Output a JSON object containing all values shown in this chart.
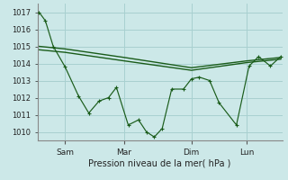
{
  "background_color": "#cce8e8",
  "grid_color": "#a8d0d0",
  "line_color": "#1a5c1a",
  "title": "Pression niveau de la mer( hPa )",
  "ylim": [
    1009.5,
    1017.5
  ],
  "yticks": [
    1010,
    1011,
    1012,
    1013,
    1014,
    1015,
    1016,
    1017
  ],
  "xtick_labels": [
    "Sam",
    "Mar",
    "Dim",
    "Lun"
  ],
  "xtick_positions": [
    35,
    110,
    195,
    265
  ],
  "xlim_data": [
    0,
    310
  ],
  "series1_x": [
    2,
    10,
    20,
    35,
    52,
    65,
    78,
    90,
    100,
    115,
    128,
    138,
    148,
    158,
    170,
    185,
    195,
    205,
    218,
    230,
    252,
    268,
    280,
    295,
    308
  ],
  "series1_y": [
    1017.0,
    1016.5,
    1015.0,
    1013.8,
    1012.1,
    1011.1,
    1011.8,
    1012.0,
    1012.6,
    1010.4,
    1010.7,
    1010.0,
    1009.7,
    1010.2,
    1012.5,
    1012.5,
    1013.1,
    1013.2,
    1013.0,
    1011.7,
    1010.4,
    1013.85,
    1014.4,
    1013.85,
    1014.4
  ],
  "series2_x": [
    2,
    35,
    110,
    195,
    265,
    308
  ],
  "series2_y": [
    1015.0,
    1014.85,
    1014.35,
    1013.75,
    1014.15,
    1014.35
  ],
  "series3_x": [
    2,
    35,
    110,
    195,
    265,
    308
  ],
  "series3_y": [
    1014.8,
    1014.65,
    1014.15,
    1013.6,
    1014.05,
    1014.25
  ]
}
